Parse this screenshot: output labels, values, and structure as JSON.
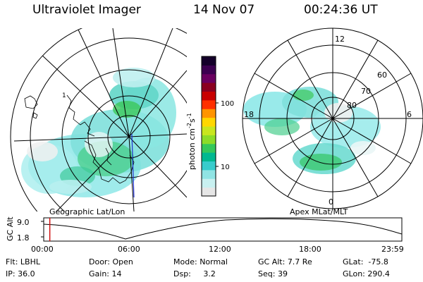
{
  "header": {
    "instrument": "Ultraviolet Imager",
    "date": "14 Nov 07",
    "time": "00:24:36 UT"
  },
  "colors": {
    "aurora_low": "#f0f0f0",
    "aurora_mid": "#7fe6e6",
    "aurora_high": "#2fbf6f",
    "aurora_peak": "#b5e61d"
  },
  "geo_map": {
    "caption": "Geographic Lat/Lon",
    "lon_label": "1"
  },
  "colorbar": {
    "label": "photon cm",
    "label_sup1": "-2",
    "label_s": "s",
    "label_sup2": "-1",
    "ticks": [
      "100",
      "10"
    ],
    "colors": [
      "#e6e6e6",
      "#c8f0f0",
      "#90e4e4",
      "#38cccc",
      "#00b890",
      "#34c85a",
      "#8cdc28",
      "#c8e61e",
      "#ffd700",
      "#ff9400",
      "#ff3000",
      "#c80000",
      "#8a0020",
      "#6a0060",
      "#3c0050",
      "#14002a"
    ]
  },
  "mlt_map": {
    "caption": "Apex MLat/MLT",
    "mlt_labels": {
      "top": "12",
      "left": "18",
      "right": "6",
      "bottom": "0"
    },
    "lat_labels": [
      "60",
      "70",
      "80"
    ]
  },
  "timeline": {
    "axis_label": "GC Alt",
    "y_ticks": [
      "9.0",
      "1.8"
    ],
    "x_ticks": [
      "00:00",
      "06:00",
      "12:00",
      "18:00",
      "23:59"
    ],
    "marker_fraction": 0.017
  },
  "info": {
    "flt_label": "Flt:",
    "flt_value": "LBHL",
    "ip_label": "IP:",
    "ip_value": "36.0",
    "door_label": "Door:",
    "door_value": "Open",
    "gain_label": "Gain:",
    "gain_value": "14",
    "mode_label": "Mode:",
    "mode_value": "Normal",
    "dsp_label": "Dsp:",
    "dsp_value": "3.2",
    "gcalt_label": "GC Alt:",
    "gcalt_value": "7.7 Re",
    "seq_label": "Seq:",
    "seq_value": "39",
    "glat_label": "GLat:",
    "glat_value": "-75.8",
    "glon_label": "GLon:",
    "glon_value": "290.4"
  }
}
